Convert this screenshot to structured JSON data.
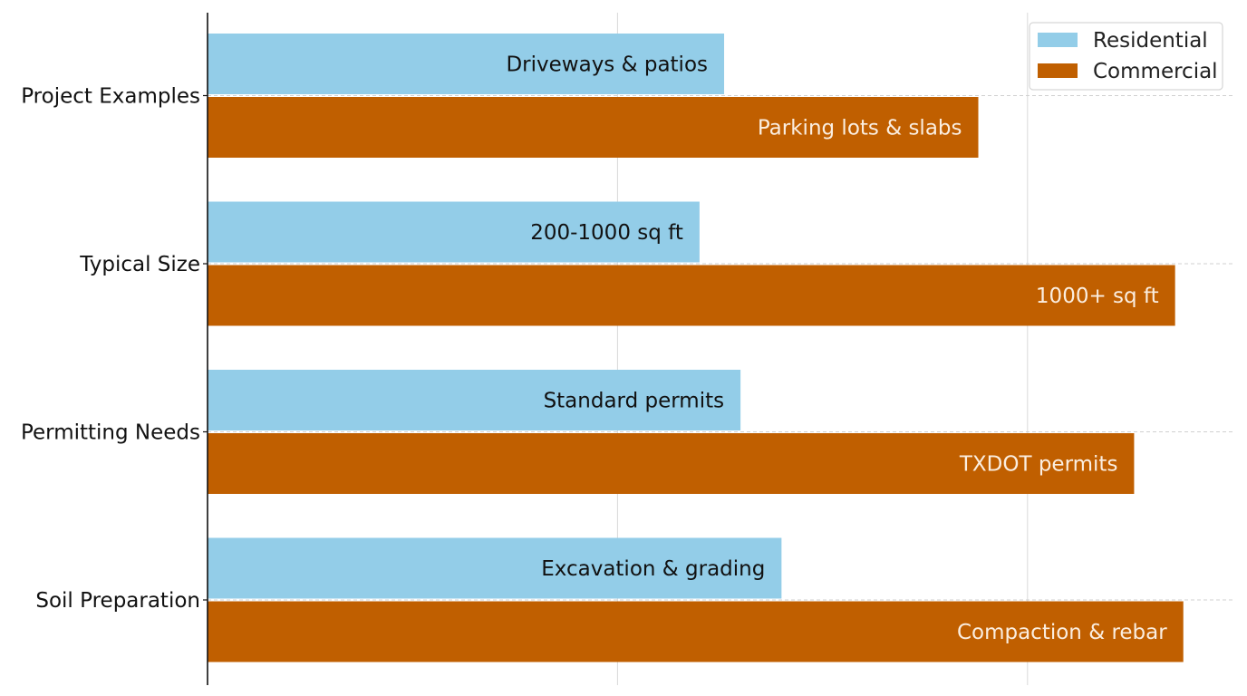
{
  "chart_data": {
    "type": "bar",
    "orientation": "horizontal",
    "categories": [
      "Project Examples",
      "Typical Size",
      "Permitting Needs",
      "Soil Preparation"
    ],
    "xlim": [
      0,
      1.25
    ],
    "x_tick_labels_visible": false,
    "grid": "on",
    "legend_position": "top-right",
    "series": [
      {
        "name": "Residential",
        "color": "#93cde8",
        "text_color": "#111111",
        "values": [
          0.63,
          0.6,
          0.65,
          0.7
        ],
        "labels": [
          "Driveways & patios",
          "200-1000 sq ft",
          "Standard permits",
          "Excavation & grading"
        ]
      },
      {
        "name": "Commercial",
        "color": "#c05f00",
        "text_color": "#fbeee0",
        "values": [
          0.94,
          1.18,
          1.13,
          1.19
        ],
        "labels": [
          "Parking lots & slabs",
          "1000+ sq ft",
          "TXDOT permits",
          "Compaction & rebar"
        ]
      }
    ]
  }
}
